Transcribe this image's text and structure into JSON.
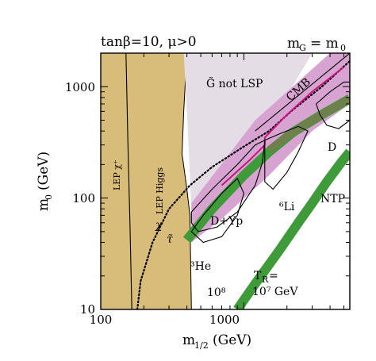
{
  "chart_data": {
    "type": "region-plot",
    "title_left": "tanβ=10, μ>0",
    "title_right": "m_G = m_0",
    "xlabel": "m_1/2 (GeV)",
    "ylabel": "m_0 (GeV)",
    "xscale": "log",
    "yscale": "log",
    "xlim": [
      100,
      5500
    ],
    "ylim": [
      10,
      2000
    ],
    "xticks": [
      100,
      1000
    ],
    "yticks": [
      10,
      100,
      1000
    ],
    "tick_labels_x": [
      "100",
      "1000"
    ],
    "tick_labels_y": [
      "10",
      "100",
      "1000"
    ],
    "colors": {
      "lep": "#d8bc7a",
      "gravitino": "#e4dde6",
      "pink": "#d7a4d2",
      "green": "#3f9a3a",
      "olive": "#7a7a52",
      "cmb": "#c8157e"
    },
    "annotations": {
      "lep_chargino": "LEP χ⁺",
      "lep_higgs": "LEP Higgs",
      "gravitino_not_lsp": "G̃ not LSP",
      "cmb": "CMB",
      "d": "D",
      "d_yp": "D+Yp",
      "li6": "⁶Li",
      "ntp": "NTP",
      "chi": "χ",
      "tau": "τ̃",
      "he3": "³He",
      "tr_prefix": "T",
      "tr_sub": "R",
      "tr_value": "10⁷ GeV",
      "ten8": "10⁸"
    },
    "regions": [
      {
        "label": "LEP excluded",
        "type": "polygon",
        "points": [
          [
            100,
            10
          ],
          [
            100,
            2000
          ],
          [
            400,
            2000
          ],
          [
            380,
            600
          ],
          [
            370,
            250
          ],
          [
            400,
            120
          ],
          [
            420,
            70
          ],
          [
            430,
            10
          ]
        ]
      },
      {
        "label": "gravitino not LSP",
        "type": "polygon",
        "points": [
          [
            380,
            2000
          ],
          [
            3000,
            2000
          ],
          [
            1400,
            380
          ],
          [
            600,
            115
          ],
          [
            430,
            70
          ],
          [
            420,
            160
          ],
          [
            400,
            600
          ]
        ]
      },
      {
        "label": "CMB/BBN excluded",
        "type": "polygon",
        "points": [
          [
            430,
            70
          ],
          [
            430,
            40
          ],
          [
            700,
            65
          ],
          [
            1500,
            160
          ],
          [
            3000,
            400
          ],
          [
            5500,
            700
          ],
          [
            5500,
            2000
          ],
          [
            4000,
            2000
          ],
          [
            1200,
            500
          ],
          [
            430,
            90
          ]
        ]
      },
      {
        "label": "allowed band 10^7 GeV",
        "type": "band",
        "points": [
          [
            400,
            42
          ],
          [
            600,
            80
          ],
          [
            1000,
            160
          ],
          [
            1500,
            260
          ],
          [
            2200,
            390
          ],
          [
            3500,
            560
          ],
          [
            5500,
            780
          ]
        ]
      },
      {
        "label": "allowed band 10^8 GeV",
        "type": "band",
        "points": [
          [
            900,
            10
          ],
          [
            1200,
            17
          ],
          [
            1800,
            35
          ],
          [
            2400,
            60
          ],
          [
            3000,
            90
          ],
          [
            3800,
            140
          ],
          [
            4800,
            210
          ],
          [
            5500,
            260
          ]
        ]
      }
    ],
    "lines": [
      {
        "label": "chi-stau boundary",
        "style": "dotted",
        "points": [
          [
            180,
            10
          ],
          [
            190,
            18
          ],
          [
            230,
            40
          ],
          [
            300,
            80
          ],
          [
            420,
            130
          ],
          [
            600,
            190
          ],
          [
            1000,
            290
          ],
          [
            1500,
            400
          ],
          [
            2200,
            620
          ],
          [
            3500,
            1000
          ],
          [
            5500,
            1700
          ]
        ]
      },
      {
        "label": "LEP chargino",
        "style": "solid",
        "points": [
          [
            150,
            2000
          ],
          [
            155,
            300
          ],
          [
            160,
            60
          ],
          [
            165,
            10
          ]
        ]
      },
      {
        "label": "CMB",
        "style": "solid",
        "points": [
          [
            700,
            130
          ],
          [
            1100,
            220
          ],
          [
            1400,
            300
          ],
          [
            1400,
            350
          ],
          [
            2000,
            560
          ],
          [
            3000,
            900
          ],
          [
            5000,
            1500
          ]
        ]
      },
      {
        "label": "m_G = m_0 diagonal",
        "style": "solid",
        "points": [
          [
            1200,
            400
          ],
          [
            5500,
            2000
          ]
        ]
      }
    ]
  }
}
